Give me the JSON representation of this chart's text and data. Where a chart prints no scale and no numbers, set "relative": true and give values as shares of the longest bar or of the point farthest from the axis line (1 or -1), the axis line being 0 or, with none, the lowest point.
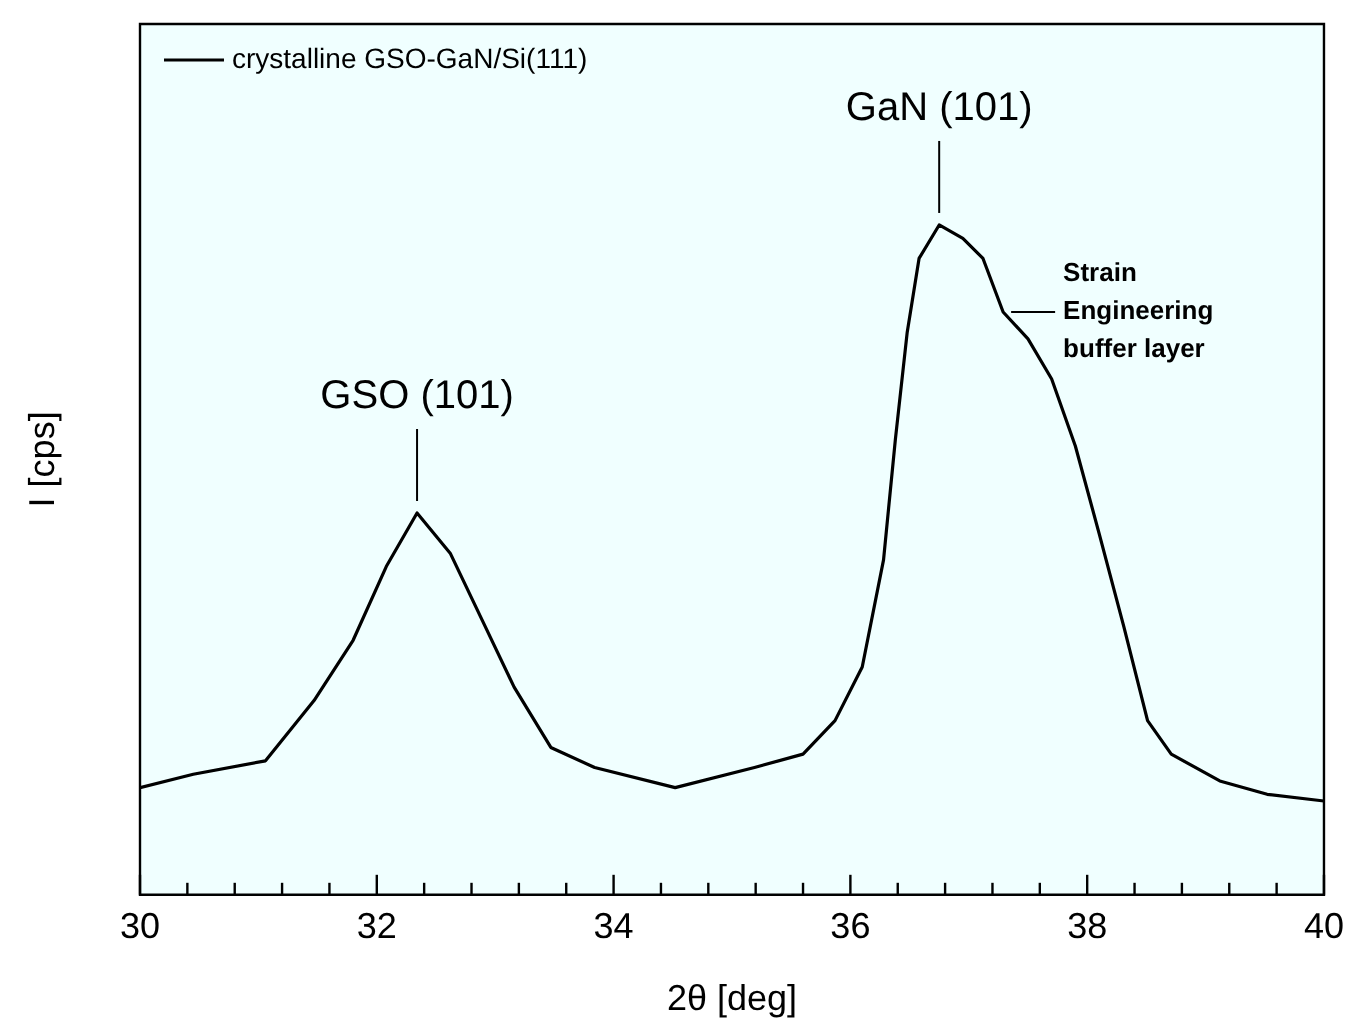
{
  "chart_data": {
    "type": "line",
    "xlabel": "2θ [deg]",
    "ylabel": "I [cps]",
    "relative": true,
    "legend": "top left",
    "marker": "none",
    "line_style": "solid",
    "xlim": [
      30,
      40
    ],
    "xticks": [
      30,
      {
        "value": 30.4,
        "label": null
      },
      {
        "value": 30.8,
        "label": null
      },
      {
        "value": 31.2,
        "label": null
      },
      {
        "value": 31.6,
        "label": null
      },
      32,
      {
        "value": 32.4,
        "label": null
      },
      {
        "value": 32.8,
        "label": null
      },
      {
        "value": 33.2,
        "label": null
      },
      {
        "value": 33.6,
        "label": null
      },
      34,
      {
        "value": 34.4,
        "label": null
      },
      {
        "value": 34.8,
        "label": null
      },
      {
        "value": 35.2,
        "label": null
      },
      {
        "value": 35.6,
        "label": null
      },
      36,
      {
        "value": 36.4,
        "label": null
      },
      {
        "value": 36.8,
        "label": null
      },
      {
        "value": 37.2,
        "label": null
      },
      {
        "value": 37.6,
        "label": null
      },
      38,
      {
        "value": 38.4,
        "label": null
      },
      {
        "value": 38.8,
        "label": null
      },
      {
        "value": 39.2,
        "label": null
      },
      {
        "value": 39.6,
        "label": null
      },
      40
    ],
    "x": [
      30,
      30.45,
      31.06,
      31.47,
      31.8,
      32.08,
      32.34,
      32.62,
      32.89,
      33.16,
      33.47,
      33.84,
      34.52,
      35.19,
      35.6,
      35.87,
      36.1,
      36.28,
      36.38,
      36.48,
      36.58,
      36.75,
      36.95,
      37.12,
      37.29,
      37.5,
      37.7,
      37.9,
      38.1,
      38.31,
      38.51,
      38.71,
      39.12,
      39.52,
      40
    ],
    "series": [
      {
        "name": "crystalline GSO-GaN/Si(111)",
        "color": "#000000",
        "values": [
          0.16,
          0.18,
          0.2,
          0.29,
          0.38,
          0.49,
          0.57,
          0.51,
          0.41,
          0.31,
          0.22,
          0.19,
          0.16,
          0.19,
          0.21,
          0.26,
          0.34,
          0.5,
          0.68,
          0.84,
          0.95,
          1,
          0.98,
          0.95,
          0.87,
          0.83,
          0.77,
          0.67,
          0.54,
          0.4,
          0.26,
          0.21,
          0.17,
          0.15,
          0.14
        ]
      }
    ],
    "annotations": [
      {
        "text": "GSO (101)",
        "x": 32.34,
        "y": 0.57
      },
      {
        "text": "GaN (101)",
        "x": 36.75,
        "y": 1
      },
      {
        "text": "Strain Engineering buffer layer",
        "x": 37.29,
        "y": 0.87
      }
    ]
  }
}
